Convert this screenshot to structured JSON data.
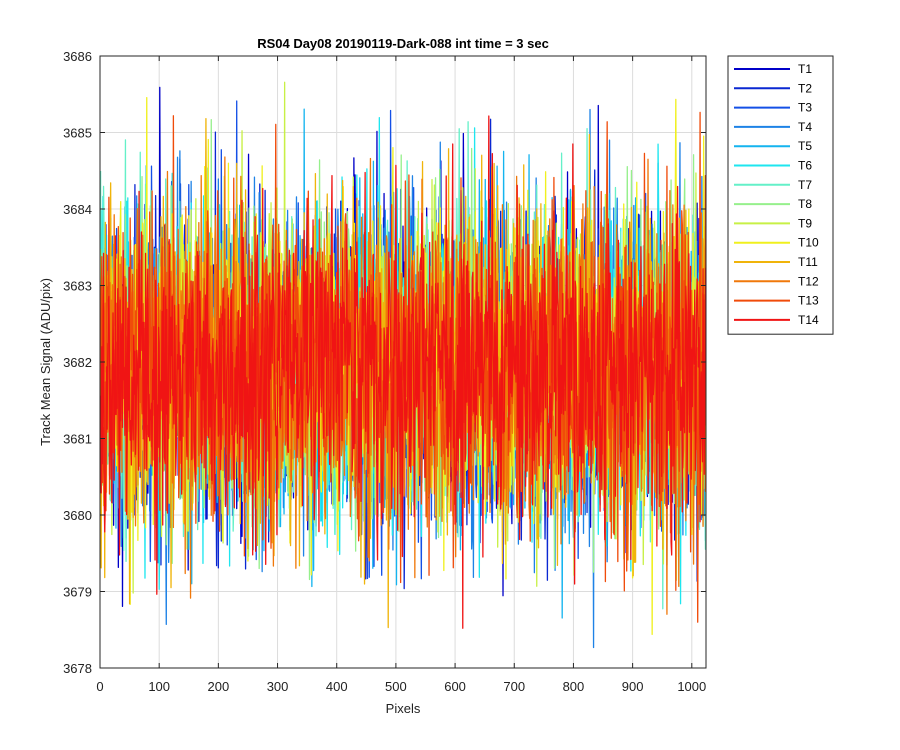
{
  "chart_data": {
    "type": "line",
    "title": "RS04 Day08 20190119-Dark-088 int time = 3 sec",
    "xlabel": "Pixels",
    "ylabel": "Track Mean Signal (ADU/pix)",
    "xlim": [
      0,
      1024
    ],
    "ylim": [
      3678,
      3686
    ],
    "xticks": [
      0,
      100,
      200,
      300,
      400,
      500,
      600,
      700,
      800,
      900,
      1000
    ],
    "yticks": [
      3678,
      3679,
      3680,
      3681,
      3682,
      3683,
      3684,
      3685,
      3686
    ],
    "grid": true,
    "legend_position": "outside-top-right",
    "x_count": 1024,
    "signal_level_mean": 3681.9,
    "signal_noise_std": 1.0,
    "series": [
      {
        "name": "T1",
        "color": "#0000c8"
      },
      {
        "name": "T2",
        "color": "#0a28d2"
      },
      {
        "name": "T3",
        "color": "#1450e6"
      },
      {
        "name": "T4",
        "color": "#1e82e6"
      },
      {
        "name": "T5",
        "color": "#14b4ef"
      },
      {
        "name": "T6",
        "color": "#1ee6ef"
      },
      {
        "name": "T7",
        "color": "#64f0c8"
      },
      {
        "name": "T8",
        "color": "#96f08c"
      },
      {
        "name": "T9",
        "color": "#c8f046"
      },
      {
        "name": "T10",
        "color": "#f0f01e"
      },
      {
        "name": "T11",
        "color": "#f0b40a"
      },
      {
        "name": "T12",
        "color": "#f0780a"
      },
      {
        "name": "T13",
        "color": "#f04b0a"
      },
      {
        "name": "T14",
        "color": "#f01414"
      }
    ]
  }
}
